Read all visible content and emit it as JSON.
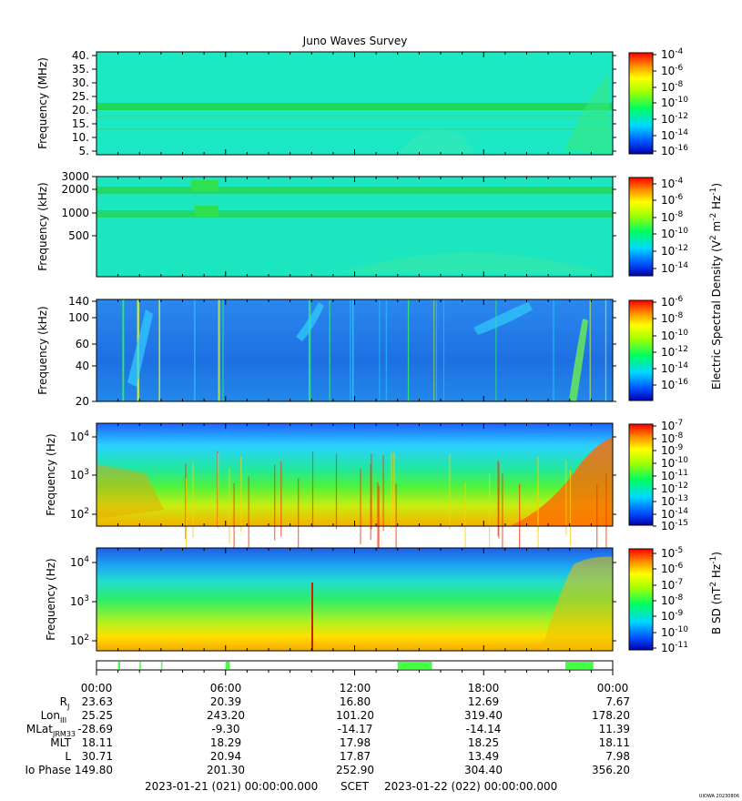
{
  "chart_data": {
    "type": "heatmap",
    "title": "Juno Waves Survey",
    "x_ticks": [
      "00:00",
      "06:00",
      "12:00",
      "18:00",
      "00:00"
    ],
    "panels": [
      {
        "ylabel": "Frequency (MHz)",
        "yticks": [
          "40.",
          "35.",
          "30.",
          "25.",
          "20.",
          "15.",
          "10.",
          "5."
        ],
        "cbar_labels": [
          "-4",
          "-6",
          "-8",
          "-10",
          "-12",
          "-14",
          "-16"
        ],
        "base_color": "#1de8c4"
      },
      {
        "ylabel": "Frequency (kHz)",
        "yticks": [
          "3000",
          "2000",
          "1000",
          "500"
        ],
        "cbar_labels": [
          "-4",
          "-6",
          "-8",
          "-10",
          "-12",
          "-14"
        ],
        "base_color": "#1ce6c0"
      },
      {
        "ylabel": "Frequency (kHz)",
        "yticks": [
          "140",
          "100",
          "60",
          "40",
          "20"
        ],
        "cbar_labels": [
          "-6",
          "-8",
          "-10",
          "-12",
          "-14",
          "-16"
        ],
        "base_color": "#1f7ee6"
      },
      {
        "ylabel": "Frequency (Hz)",
        "yticks": [
          "4",
          "3",
          "2"
        ],
        "cbar_labels": [
          "-7",
          "-8",
          "-9",
          "-10",
          "-11",
          "-12",
          "-13",
          "-14",
          "-15"
        ],
        "base_color": "#36c8ff"
      },
      {
        "ylabel": "Frequency (Hz)",
        "yticks": [
          "4",
          "3",
          "2"
        ],
        "cbar_labels": [
          "-5",
          "-6",
          "-7",
          "-8",
          "-9",
          "-10",
          "-11"
        ],
        "base_color": "#2860ea"
      }
    ],
    "cbar_title_electric": "Electric Spectral Density (V",
    "cbar_title_magnetic": "B SD (nT",
    "cbar_base": "10",
    "ephemeris": {
      "labels": [
        "R",
        "Lon",
        "MLat",
        "MLT",
        "L",
        "Io Phase"
      ],
      "subscripts": [
        "J",
        "III",
        "JRM33",
        "",
        "",
        ""
      ],
      "rows": [
        [
          "23.63",
          "20.39",
          "16.80",
          "12.69",
          "7.67"
        ],
        [
          "25.25",
          "243.20",
          "101.20",
          "319.40",
          "178.20"
        ],
        [
          "-28.69",
          "-9.30",
          "-14.17",
          "-14.14",
          "11.39"
        ],
        [
          "18.11",
          "18.29",
          "17.98",
          "18.25",
          "18.11"
        ],
        [
          "30.71",
          "20.94",
          "17.87",
          "13.49",
          "7.98"
        ],
        [
          "149.80",
          "201.30",
          "252.90",
          "304.40",
          "356.20"
        ]
      ]
    },
    "mode_bar": {
      "segments_hours": [
        [
          1.0,
          1.1
        ],
        [
          2.0,
          2.05
        ],
        [
          3.0,
          3.05
        ],
        [
          6.0,
          6.2
        ],
        [
          14.0,
          15.6
        ],
        [
          21.8,
          23.1
        ]
      ],
      "color": "#44ff44"
    },
    "scet_start": "2023-01-21 (021) 00:00:00.000",
    "scet_label": "SCET",
    "scet_end": "2023-01-22 (022) 00:00:00.000",
    "footer": "UIOWA 20230806"
  }
}
